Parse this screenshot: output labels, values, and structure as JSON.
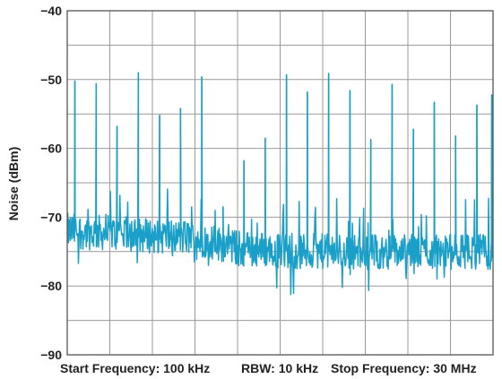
{
  "chart_data": {
    "type": "line",
    "title": "",
    "ylabel": "Noise (dBm)",
    "ylim": [
      -90,
      -40
    ],
    "yticks": [
      -40,
      -50,
      -60,
      -70,
      -80,
      -90
    ],
    "ytick_labels": [
      "−40",
      "−50",
      "−60",
      "−70",
      "−80",
      "−90"
    ],
    "x_divisions": 10,
    "y_divisions": 10,
    "grid": true,
    "footer": {
      "start": "Start Frequency: 100 kHz",
      "rbw": "RBW: 10 kHz",
      "stop": "Stop Frequency: 30 MHz"
    },
    "series_color": "#1aa0c8",
    "grid_color": "#9a9a9a",
    "x_range": [
      0,
      10
    ],
    "floor_level": [
      {
        "x": 0.0,
        "y": -72
      },
      {
        "x": 1.5,
        "y": -72.5
      },
      {
        "x": 3.0,
        "y": -73
      },
      {
        "x": 4.0,
        "y": -74.5
      },
      {
        "x": 5.5,
        "y": -75
      },
      {
        "x": 8.0,
        "y": -75
      },
      {
        "x": 10.0,
        "y": -75
      }
    ],
    "spikes": [
      {
        "x": 0.18,
        "y": -50.2
      },
      {
        "x": 0.68,
        "y": -50.6
      },
      {
        "x": 1.17,
        "y": -56.8
      },
      {
        "x": 1.67,
        "y": -49.0
      },
      {
        "x": 2.17,
        "y": -55.2
      },
      {
        "x": 2.66,
        "y": -54.2
      },
      {
        "x": 3.16,
        "y": -49.6
      },
      {
        "x": 3.66,
        "y": -68.5
      },
      {
        "x": 4.15,
        "y": -61.8
      },
      {
        "x": 4.65,
        "y": -58.5
      },
      {
        "x": 5.15,
        "y": -49.3
      },
      {
        "x": 5.64,
        "y": -51.8
      },
      {
        "x": 6.14,
        "y": -49.1
      },
      {
        "x": 6.64,
        "y": -51.6
      },
      {
        "x": 7.13,
        "y": -58.7
      },
      {
        "x": 7.63,
        "y": -50.7
      },
      {
        "x": 8.13,
        "y": -57.2
      },
      {
        "x": 8.62,
        "y": -53.3
      },
      {
        "x": 9.12,
        "y": -58.2
      },
      {
        "x": 9.62,
        "y": -53.7
      },
      {
        "x": 9.97,
        "y": -52.2
      }
    ]
  }
}
